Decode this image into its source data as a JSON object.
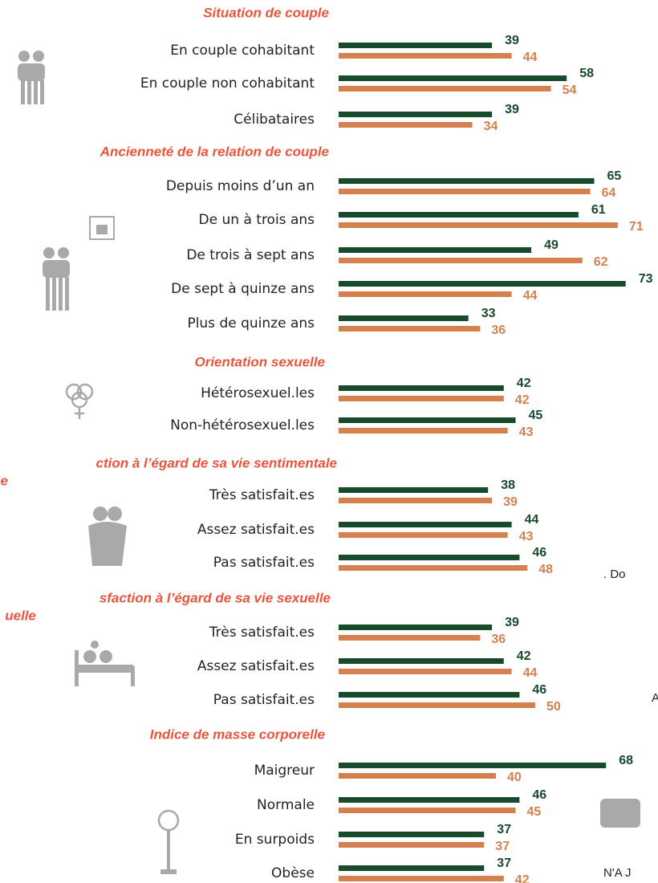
{
  "chart_data": [
    {
      "type": "bar",
      "title": [
        "Situation de couple"
      ],
      "categories": [
        "En couple cohabitant",
        "En couple non cohabitant",
        "Célibataires"
      ],
      "series": [
        {
          "color": "#184a2c",
          "values": [
            39,
            58,
            39
          ]
        },
        {
          "color": "#d4814f",
          "values": [
            44,
            54,
            34
          ]
        }
      ]
    },
    {
      "type": "bar",
      "title": [
        "Ancienneté de la relation de couple"
      ],
      "categories": [
        "Depuis moins d’un an",
        "De un à trois ans",
        "De trois à sept ans",
        "De sept à quinze ans",
        "Plus de quinze ans"
      ],
      "series": [
        {
          "color": "#184a2c",
          "values": [
            65,
            61,
            49,
            73,
            33
          ]
        },
        {
          "color": "#d4814f",
          "values": [
            64,
            71,
            62,
            44,
            36
          ]
        }
      ]
    },
    {
      "type": "bar",
      "title": [
        "Orientation sexuelle"
      ],
      "categories": [
        "Hétérosexuel.les",
        "Non-hétérosexuel.les"
      ],
      "series": [
        {
          "color": "#184a2c",
          "values": [
            42,
            45
          ]
        },
        {
          "color": "#d4814f",
          "values": [
            42,
            43
          ]
        }
      ]
    },
    {
      "type": "bar",
      "title": [
        "ction à l’égard  de sa vie sentimentale",
        "e"
      ],
      "categories": [
        "Très satisfait.es",
        "Assez satisfait.es",
        "Pas satisfait.es"
      ],
      "series": [
        {
          "color": "#184a2c",
          "values": [
            38,
            44,
            46
          ]
        },
        {
          "color": "#d4814f",
          "values": [
            39,
            43,
            48
          ]
        }
      ]
    },
    {
      "type": "bar",
      "title": [
        "sfaction  à l’égard de sa vie sexuelle",
        "uelle"
      ],
      "categories": [
        "Très satisfait.es",
        "Assez satisfait.es",
        "Pas satisfait.es"
      ],
      "series": [
        {
          "color": "#184a2c",
          "values": [
            39,
            42,
            46
          ]
        },
        {
          "color": "#d4814f",
          "values": [
            36,
            44,
            50
          ]
        }
      ]
    },
    {
      "type": "bar",
      "title": [
        "Indice de masse corporelle"
      ],
      "categories": [
        "Maigreur",
        "Normale",
        "En surpoids",
        "Obèse"
      ],
      "series": [
        {
          "color": "#184a2c",
          "values": [
            68,
            46,
            37,
            37
          ]
        },
        {
          "color": "#d4814f",
          "values": [
            40,
            45,
            37,
            42
          ]
        }
      ]
    }
  ],
  "side_text": [
    ". Do",
    "A",
    "N'A J"
  ]
}
